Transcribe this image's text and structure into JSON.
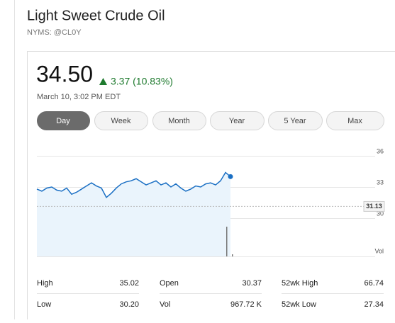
{
  "header": {
    "title": "Light Sweet Crude Oil",
    "symbol": "NYMS: @CL0Y"
  },
  "quote": {
    "price": "34.50",
    "change": "3.37 (10.83%)",
    "timestamp": "March 10, 3:02 PM EDT"
  },
  "tabs": [
    {
      "label": "Day",
      "selected": true
    },
    {
      "label": "Week",
      "selected": false
    },
    {
      "label": "Month",
      "selected": false
    },
    {
      "label": "Year",
      "selected": false
    },
    {
      "label": "5 Year",
      "selected": false
    },
    {
      "label": "Max",
      "selected": false
    }
  ],
  "chart_data": {
    "type": "line",
    "color": "#1a6fc4",
    "values": [
      32.8,
      32.6,
      32.9,
      33.0,
      32.7,
      32.6,
      32.9,
      32.3,
      32.5,
      32.8,
      33.1,
      33.4,
      33.1,
      32.9,
      32.0,
      32.4,
      32.9,
      33.3,
      33.5,
      33.6,
      33.8,
      33.5,
      33.2,
      33.4,
      33.6,
      33.2,
      33.4,
      33.0,
      33.3,
      32.9,
      32.6,
      32.8,
      33.1,
      33.0,
      33.3,
      33.4,
      33.2,
      33.6,
      34.4,
      34.0
    ],
    "ylim": [
      30,
      36
    ],
    "yticks": [
      30,
      33,
      36
    ],
    "grid": true,
    "reference_line": 31.13,
    "volume_label": "Vol"
  },
  "stats": [
    [
      {
        "label": "High",
        "value": "35.02"
      },
      {
        "label": "Open",
        "value": "30.37"
      },
      {
        "label": "52wk High",
        "value": "66.74"
      }
    ],
    [
      {
        "label": "Low",
        "value": "30.20"
      },
      {
        "label": "Vol",
        "value": "967.72 K"
      },
      {
        "label": "52wk Low",
        "value": "27.34"
      }
    ]
  ]
}
